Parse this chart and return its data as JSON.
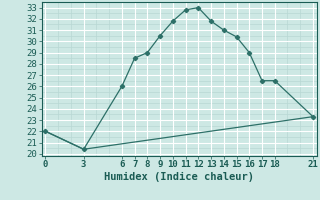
{
  "title": "",
  "xlabel": "Humidex (Indice chaleur)",
  "bg_color": "#cde8e4",
  "line_color": "#2d7068",
  "grid_major_color": "#ffffff",
  "grid_minor_color": "#b8d8d4",
  "x_ticks": [
    0,
    3,
    6,
    7,
    8,
    9,
    10,
    11,
    12,
    13,
    14,
    15,
    16,
    17,
    18,
    21
  ],
  "y_ticks": [
    20,
    21,
    22,
    23,
    24,
    25,
    26,
    27,
    28,
    29,
    30,
    31,
    32,
    33
  ],
  "ylim": [
    19.8,
    33.5
  ],
  "xlim": [
    -0.3,
    21.3
  ],
  "curve1_x": [
    0,
    3,
    6,
    7,
    8,
    9,
    10,
    11,
    12,
    13,
    14,
    15,
    16,
    17,
    18,
    21
  ],
  "curve1_y": [
    22.0,
    20.4,
    26.0,
    28.5,
    29.0,
    30.5,
    31.8,
    32.8,
    33.0,
    31.8,
    31.0,
    30.4,
    29.0,
    26.5,
    26.5,
    23.3
  ],
  "curve2_x": [
    0,
    3,
    21
  ],
  "curve2_y": [
    22.0,
    20.4,
    23.3
  ],
  "font_family": "monospace",
  "tick_fontsize": 6.5,
  "label_fontsize": 7.5
}
